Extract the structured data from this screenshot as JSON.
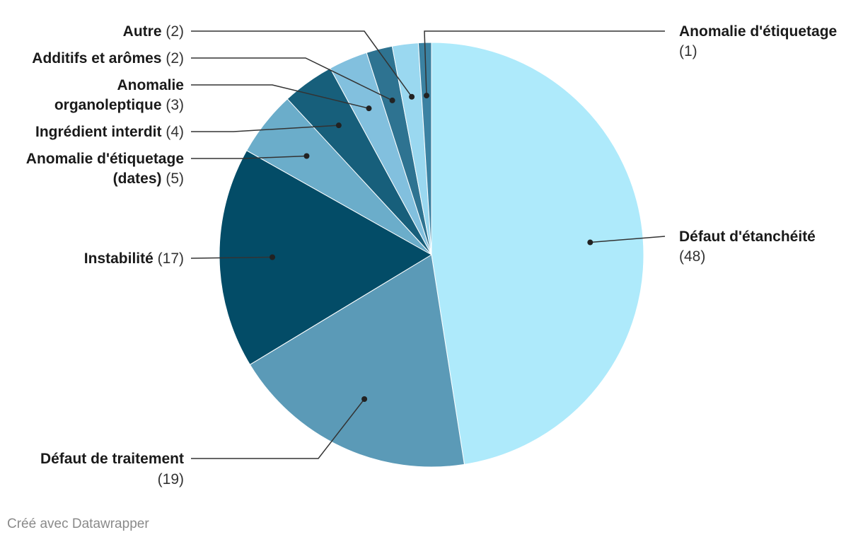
{
  "chart_data": {
    "type": "pie",
    "title": "",
    "slices": [
      {
        "label": "Défaut d'étanchéité",
        "value": 48,
        "color": "#aeeafb"
      },
      {
        "label": "Défaut de traitement",
        "value": 19,
        "color": "#5b9ab7"
      },
      {
        "label": "Instabilité",
        "value": 17,
        "color": "#034c67"
      },
      {
        "label": "Anomalie d'étiquetage (dates)",
        "value": 5,
        "color": "#6badca"
      },
      {
        "label": "Ingrédient interdit",
        "value": 4,
        "color": "#175f7b"
      },
      {
        "label": "Anomalie organoleptique",
        "value": 3,
        "color": "#82c0de"
      },
      {
        "label": "Additifs et arômes",
        "value": 2,
        "color": "#2e7391"
      },
      {
        "label": "Autre",
        "value": 2,
        "color": "#9ad8f0"
      },
      {
        "label": "Anomalie d'étiquetage",
        "value": 1,
        "color": "#3b82a2"
      }
    ],
    "legend": "none"
  },
  "footer": {
    "credit": "Créé avec Datawrapper"
  }
}
